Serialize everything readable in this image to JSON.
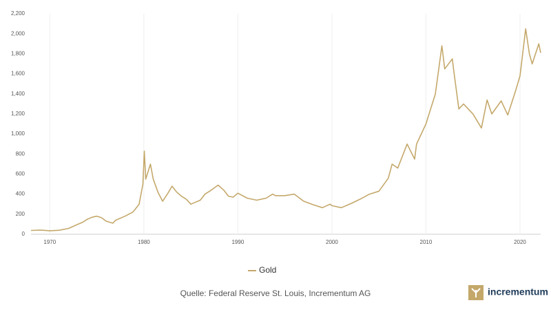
{
  "chart_data": {
    "type": "line",
    "x": [
      1968,
      1969,
      1970,
      1971,
      1972,
      1973,
      1973.5,
      1974,
      1974.5,
      1975,
      1975.5,
      1976,
      1976.7,
      1977,
      1978,
      1978.8,
      1979,
      1979.5,
      1979.9,
      1980.05,
      1980.2,
      1980.7,
      1981,
      1981.5,
      1982,
      1982.5,
      1983,
      1983.5,
      1984,
      1984.5,
      1985,
      1985.5,
      1986,
      1986.5,
      1987,
      1987.9,
      1988.5,
      1989,
      1989.5,
      1990,
      1991,
      1992,
      1993,
      1993.7,
      1994,
      1995,
      1996,
      1997,
      1998,
      1999,
      1999.8,
      2000,
      2001,
      2002,
      2003,
      2004,
      2005,
      2006,
      2006.4,
      2007,
      2008,
      2008.8,
      2009,
      2010,
      2011,
      2011.7,
      2012,
      2012.8,
      2013,
      2013.5,
      2014,
      2015,
      2015.9,
      2016.5,
      2017,
      2018,
      2018.7,
      2019.5,
      2020,
      2020.6,
      2021,
      2021.3,
      2022,
      2022.2
    ],
    "series": [
      {
        "name": "Gold",
        "color": "#c4a86a",
        "values": [
          38,
          42,
          35,
          40,
          58,
          100,
          120,
          150,
          170,
          180,
          165,
          130,
          110,
          140,
          180,
          220,
          240,
          300,
          500,
          830,
          550,
          700,
          550,
          420,
          330,
          400,
          480,
          420,
          380,
          350,
          300,
          320,
          340,
          400,
          430,
          490,
          440,
          380,
          370,
          410,
          360,
          340,
          360,
          400,
          385,
          385,
          400,
          330,
          295,
          265,
          300,
          285,
          265,
          305,
          350,
          400,
          430,
          560,
          700,
          660,
          900,
          750,
          900,
          1100,
          1400,
          1880,
          1650,
          1750,
          1600,
          1250,
          1300,
          1200,
          1060,
          1340,
          1200,
          1330,
          1190,
          1420,
          1580,
          2050,
          1800,
          1700,
          1900,
          1810
        ]
      }
    ],
    "xlim": [
      1968,
      2022.2
    ],
    "xticks": [
      1970,
      1980,
      1990,
      2000,
      2010,
      2020
    ],
    "ylim": [
      0,
      2200
    ],
    "yticks": [
      0,
      200,
      400,
      600,
      800,
      {
        "value": 1000,
        "label": "1,000"
      },
      {
        "value": 1200,
        "label": "1,200"
      },
      {
        "value": 1400,
        "label": "1,400"
      },
      {
        "value": 1600,
        "label": "1,600"
      },
      {
        "value": 1800,
        "label": "1,800"
      },
      {
        "value": 2000,
        "label": "2,000"
      },
      {
        "value": 2200,
        "label": "2,200"
      }
    ],
    "grid": "x",
    "legend": "bottom",
    "source": "Quelle: Federal Reserve St. Louis, Incrementum AG",
    "brand": "incrementum"
  }
}
